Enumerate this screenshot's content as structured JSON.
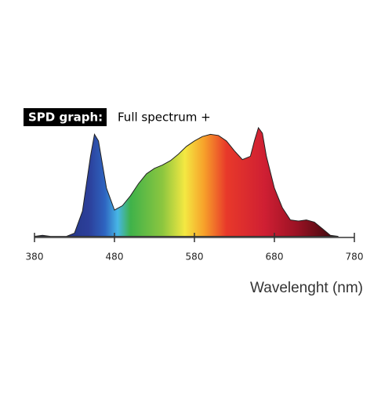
{
  "chart_data": {
    "type": "area",
    "title": "SPD graph:",
    "subtitle": "Full spectrum +",
    "x_label": "Wavelenght (nm)",
    "x": [
      380,
      390,
      400,
      410,
      420,
      430,
      440,
      450,
      455,
      460,
      470,
      480,
      490,
      500,
      510,
      520,
      530,
      540,
      550,
      560,
      570,
      580,
      590,
      600,
      610,
      620,
      630,
      640,
      650,
      655,
      660,
      665,
      670,
      680,
      690,
      700,
      710,
      720,
      730,
      740,
      750,
      760
    ],
    "values": [
      0.01,
      0.02,
      0.01,
      0.01,
      0.01,
      0.04,
      0.24,
      0.74,
      0.94,
      0.88,
      0.45,
      0.25,
      0.29,
      0.38,
      0.49,
      0.58,
      0.63,
      0.66,
      0.7,
      0.76,
      0.83,
      0.88,
      0.92,
      0.94,
      0.93,
      0.88,
      0.79,
      0.71,
      0.74,
      0.88,
      1.0,
      0.95,
      0.74,
      0.45,
      0.27,
      0.16,
      0.15,
      0.16,
      0.14,
      0.08,
      0.02,
      0.01
    ],
    "xlim": [
      380,
      780
    ],
    "xticks": [
      380,
      480,
      580,
      680,
      780
    ],
    "ylim": [
      0,
      1
    ]
  }
}
